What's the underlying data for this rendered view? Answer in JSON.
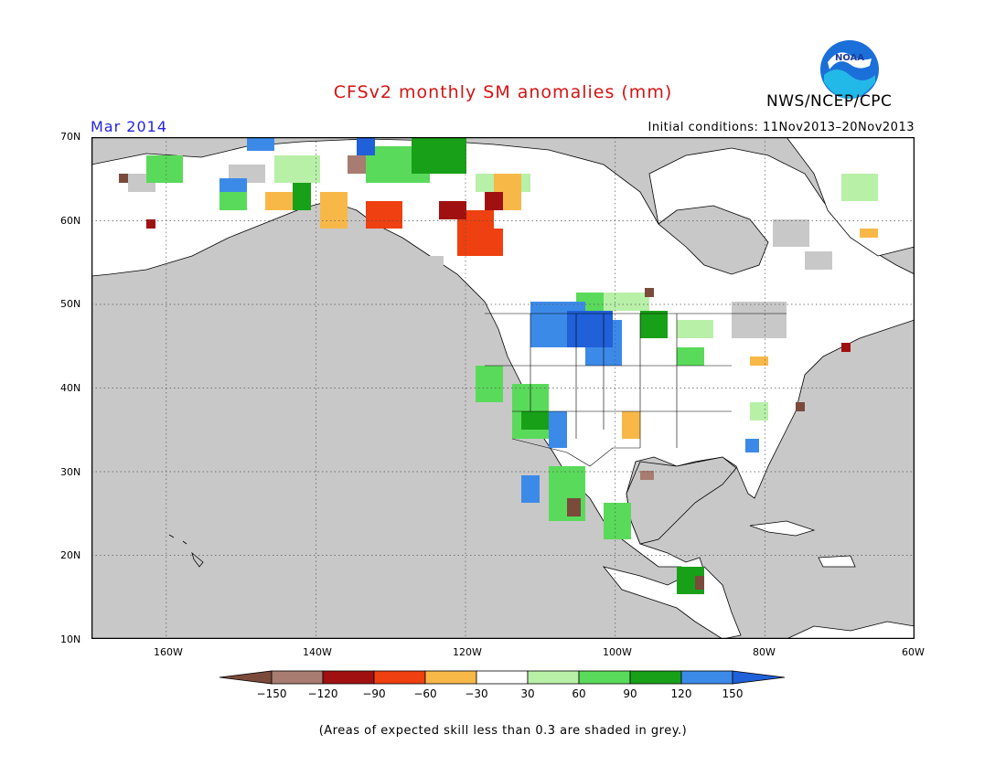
{
  "title": "CFSv2 monthly SM anomalies (mm)",
  "agency": "NWS/NCEP/CPC",
  "logo_text": "NOAA",
  "target_month": "Mar 2014",
  "initial_conditions": "Initial conditions: 11Nov2013–20Nov2013",
  "footnote": "(Areas of expected skill less than 0.3 are shaded in grey.)",
  "latitude_labels": [
    "70N",
    "60N",
    "50N",
    "40N",
    "30N",
    "20N",
    "10N"
  ],
  "longitude_labels": [
    "160W",
    "140W",
    "120W",
    "100W",
    "80W",
    "60W"
  ],
  "colorbar": {
    "labels": [
      "−150",
      "−120",
      "−90",
      "−60",
      "−30",
      "30",
      "60",
      "90",
      "120",
      "150"
    ],
    "colors": [
      "#7a4a3a",
      "#a87c70",
      "#a01010",
      "#ee4010",
      "#f8b848",
      "#ffffff",
      "#b8f0a8",
      "#5ada5a",
      "#18a018",
      "#3c8ae8",
      "#2060d8"
    ]
  },
  "colors": {
    "ocean_land_no_skill": "#c8c8c8",
    "land": "#ffffff",
    "title": "#d41414",
    "month": "#2323e0"
  }
}
